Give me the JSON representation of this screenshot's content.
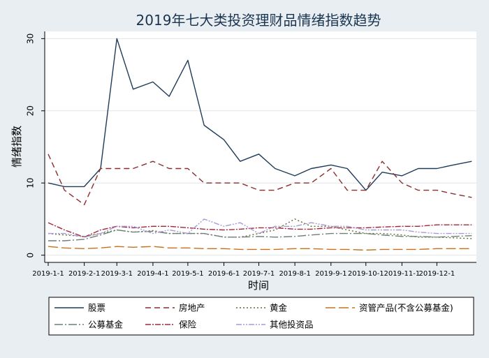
{
  "chart_data": {
    "type": "line",
    "title": "2019年七大类投资理财品情绪指数趋势",
    "xlabel": "时间",
    "ylabel": "情绪指数",
    "ylim": [
      0,
      31
    ],
    "y_ticks": [
      0,
      10,
      20,
      30
    ],
    "x_ticks": [
      "2019-1-1",
      "2019-2-1",
      "2019-3-1",
      "2019-4-1",
      "2019-5-1",
      "2019-6-1",
      "2019-7-1",
      "2019-8-1",
      "2019-9-1",
      "2019-10-1",
      "2019-11-1",
      "2019-12-1"
    ],
    "grid": "horizontal",
    "legend_position": "bottom",
    "x_dates": [
      "2019-01-01",
      "2019-01-15",
      "2019-02-01",
      "2019-02-15",
      "2019-03-01",
      "2019-03-15",
      "2019-04-01",
      "2019-04-15",
      "2019-05-01",
      "2019-05-15",
      "2019-06-01",
      "2019-06-15",
      "2019-07-01",
      "2019-07-15",
      "2019-08-01",
      "2019-08-15",
      "2019-09-01",
      "2019-09-15",
      "2019-10-01",
      "2019-10-15",
      "2019-11-01",
      "2019-11-15",
      "2019-12-01",
      "2019-12-15",
      "2019-12-31"
    ],
    "series": [
      {
        "name": "股票",
        "color": "#1f3b5a",
        "dash": "solid",
        "values": [
          10,
          9.5,
          9.5,
          12,
          30,
          23,
          24,
          22,
          27,
          18,
          16,
          13,
          14,
          12,
          11,
          12,
          12.5,
          12,
          9,
          11.5,
          11,
          12,
          12,
          12.5,
          13
        ]
      },
      {
        "name": "房地产",
        "color": "#8c2d2d",
        "dash": "8,5",
        "values": [
          14,
          9,
          7,
          12,
          12,
          12,
          13,
          12,
          12,
          10,
          10,
          10,
          9,
          9,
          10,
          10,
          12,
          9,
          9,
          13,
          10,
          9,
          9,
          8.5,
          8
        ]
      },
      {
        "name": "黄金",
        "color": "#5e6e2e",
        "dash": "2,3",
        "values": [
          3,
          2.8,
          2.6,
          3,
          3.5,
          3.2,
          3.4,
          3,
          3,
          3,
          2.5,
          2.5,
          3,
          3.5,
          5,
          4,
          4,
          3.5,
          3,
          3,
          2.8,
          2.5,
          2.5,
          2.4,
          2.3
        ]
      },
      {
        "name": "资管产品(不含公募基金)",
        "color": "#c8701e",
        "dash": "14,5",
        "values": [
          1.2,
          1,
          0.9,
          1,
          1.2,
          1.1,
          1.2,
          1,
          1,
          0.9,
          0.9,
          0.8,
          0.8,
          0.8,
          0.9,
          0.9,
          0.8,
          0.8,
          0.7,
          0.8,
          0.8,
          0.8,
          0.9,
          0.9,
          0.9
        ]
      },
      {
        "name": "公募基金",
        "color": "#6f7f78",
        "dash": "12,3,2,3",
        "values": [
          2,
          2,
          2.2,
          2.8,
          3.5,
          3.2,
          3.3,
          3,
          3,
          3,
          2.5,
          2.5,
          2.6,
          2.5,
          2.6,
          2.8,
          3,
          3,
          3,
          2.8,
          2.6,
          2.6,
          2.5,
          2.6,
          2.7
        ]
      },
      {
        "name": "保险",
        "color": "#a0283c",
        "dash": "8,2,2,2",
        "values": [
          4.5,
          3.5,
          2.5,
          3.5,
          4,
          3.8,
          4,
          4,
          3.8,
          3.6,
          3.5,
          3.6,
          3.8,
          3.8,
          3.6,
          3.6,
          3.8,
          3.8,
          3.8,
          3.9,
          4,
          4,
          4.2,
          4.2,
          4.2
        ]
      },
      {
        "name": "其他投资品",
        "color": "#a79ad6",
        "dash": "8,2,2,2,2,2",
        "values": [
          3,
          3,
          2.5,
          3,
          4,
          4,
          3,
          3.5,
          3,
          5,
          4,
          4.5,
          3,
          4,
          4,
          4.5,
          4,
          4,
          3.5,
          3.5,
          3.5,
          3.2,
          3,
          3,
          3
        ]
      }
    ]
  }
}
